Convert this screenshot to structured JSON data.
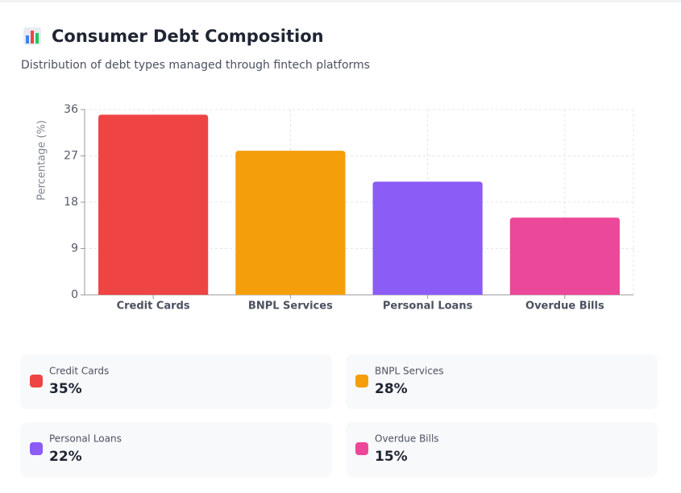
{
  "chart_data": {
    "type": "bar",
    "title": "Consumer Debt Composition",
    "subtitle": "Distribution of debt types managed through fintech platforms",
    "y_label": "Percentage (%)",
    "categories": [
      "Credit Cards",
      "BNPL Services",
      "Personal Loans",
      "Overdue Bills"
    ],
    "values": [
      35,
      28,
      22,
      15
    ],
    "value_labels": [
      "35%",
      "28%",
      "22%",
      "15%"
    ],
    "colors": [
      "#ef4444",
      "#f59e0b",
      "#8b5cf6",
      "#ec4899"
    ],
    "ylim": [
      0,
      36
    ],
    "yticks": [
      0,
      9,
      18,
      27,
      36
    ],
    "grid": true
  }
}
